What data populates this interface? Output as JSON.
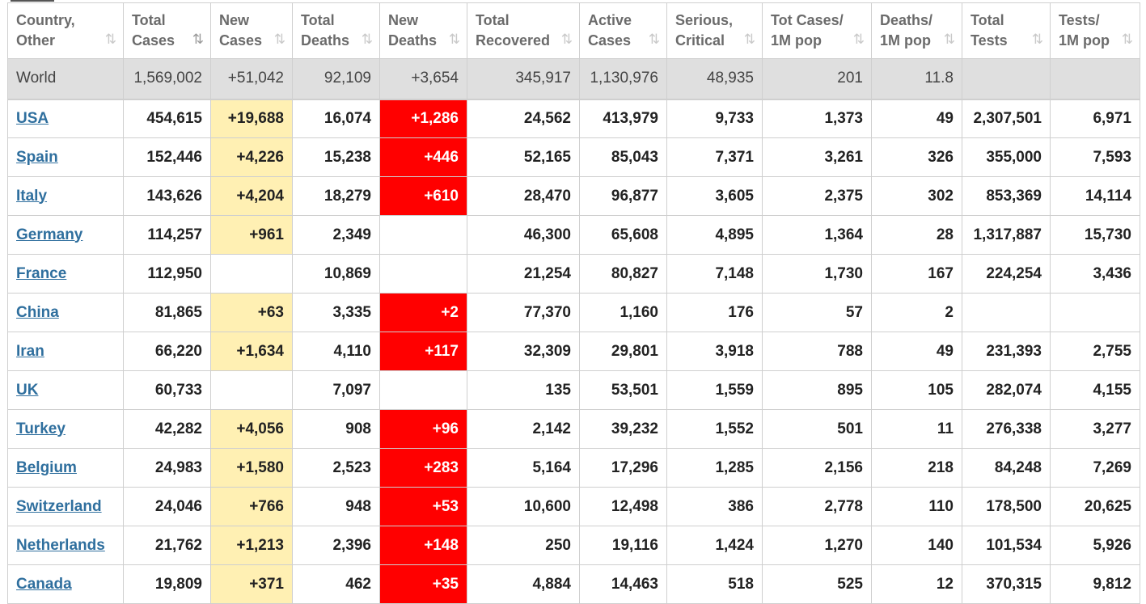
{
  "colors": {
    "new_cases_highlight": "#fff0b3",
    "new_deaths_highlight": "#ff0000",
    "link": "#2f6f9e",
    "world_row_bg": "#dfdfdf"
  },
  "icons": {
    "sort": "sort-arrows-icon",
    "sort_active": "sort-desc-icon"
  },
  "columns": [
    {
      "line1": "Country,",
      "line2": "Other",
      "sort": "⇅",
      "active": false
    },
    {
      "line1": "Total",
      "line2": "Cases",
      "sort": "⇅",
      "active": true
    },
    {
      "line1": "New",
      "line2": "Cases",
      "sort": "⇅",
      "active": false
    },
    {
      "line1": "Total",
      "line2": "Deaths",
      "sort": "⇅",
      "active": false
    },
    {
      "line1": "New",
      "line2": "Deaths",
      "sort": "⇅",
      "active": false
    },
    {
      "line1": "Total",
      "line2": "Recovered",
      "sort": "⇅",
      "active": false
    },
    {
      "line1": "Active",
      "line2": "Cases",
      "sort": "⇅",
      "active": false
    },
    {
      "line1": "Serious,",
      "line2": "Critical",
      "sort": "⇅",
      "active": false
    },
    {
      "line1": "Tot Cases/",
      "line2": "1M pop",
      "sort": "⇅",
      "active": false
    },
    {
      "line1": "Deaths/",
      "line2": "1M pop",
      "sort": "⇅",
      "active": false
    },
    {
      "line1": "Total",
      "line2": "Tests",
      "sort": "⇅",
      "active": false
    },
    {
      "line1": "Tests/",
      "line2": "1M pop",
      "sort": "⇅",
      "active": false
    }
  ],
  "world": {
    "name": "World",
    "total_cases": "1,569,002",
    "new_cases": "+51,042",
    "total_deaths": "92,109",
    "new_deaths": "+3,654",
    "total_recovered": "345,917",
    "active_cases": "1,130,976",
    "serious": "48,935",
    "cases_per_1m": "201",
    "deaths_per_1m": "11.8",
    "total_tests": "",
    "tests_per_1m": ""
  },
  "rows": [
    {
      "name": "USA",
      "total_cases": "454,615",
      "new_cases": "+19,688",
      "total_deaths": "16,074",
      "new_deaths": "+1,286",
      "total_recovered": "24,562",
      "active_cases": "413,979",
      "serious": "9,733",
      "cases_per_1m": "1,373",
      "deaths_per_1m": "49",
      "total_tests": "2,307,501",
      "tests_per_1m": "6,971"
    },
    {
      "name": "Spain",
      "total_cases": "152,446",
      "new_cases": "+4,226",
      "total_deaths": "15,238",
      "new_deaths": "+446",
      "total_recovered": "52,165",
      "active_cases": "85,043",
      "serious": "7,371",
      "cases_per_1m": "3,261",
      "deaths_per_1m": "326",
      "total_tests": "355,000",
      "tests_per_1m": "7,593"
    },
    {
      "name": "Italy",
      "total_cases": "143,626",
      "new_cases": "+4,204",
      "total_deaths": "18,279",
      "new_deaths": "+610",
      "total_recovered": "28,470",
      "active_cases": "96,877",
      "serious": "3,605",
      "cases_per_1m": "2,375",
      "deaths_per_1m": "302",
      "total_tests": "853,369",
      "tests_per_1m": "14,114"
    },
    {
      "name": "Germany",
      "total_cases": "114,257",
      "new_cases": "+961",
      "total_deaths": "2,349",
      "new_deaths": "",
      "total_recovered": "46,300",
      "active_cases": "65,608",
      "serious": "4,895",
      "cases_per_1m": "1,364",
      "deaths_per_1m": "28",
      "total_tests": "1,317,887",
      "tests_per_1m": "15,730"
    },
    {
      "name": "France",
      "total_cases": "112,950",
      "new_cases": "",
      "total_deaths": "10,869",
      "new_deaths": "",
      "total_recovered": "21,254",
      "active_cases": "80,827",
      "serious": "7,148",
      "cases_per_1m": "1,730",
      "deaths_per_1m": "167",
      "total_tests": "224,254",
      "tests_per_1m": "3,436"
    },
    {
      "name": "China",
      "total_cases": "81,865",
      "new_cases": "+63",
      "total_deaths": "3,335",
      "new_deaths": "+2",
      "total_recovered": "77,370",
      "active_cases": "1,160",
      "serious": "176",
      "cases_per_1m": "57",
      "deaths_per_1m": "2",
      "total_tests": "",
      "tests_per_1m": ""
    },
    {
      "name": "Iran",
      "total_cases": "66,220",
      "new_cases": "+1,634",
      "total_deaths": "4,110",
      "new_deaths": "+117",
      "total_recovered": "32,309",
      "active_cases": "29,801",
      "serious": "3,918",
      "cases_per_1m": "788",
      "deaths_per_1m": "49",
      "total_tests": "231,393",
      "tests_per_1m": "2,755"
    },
    {
      "name": "UK",
      "total_cases": "60,733",
      "new_cases": "",
      "total_deaths": "7,097",
      "new_deaths": "",
      "total_recovered": "135",
      "active_cases": "53,501",
      "serious": "1,559",
      "cases_per_1m": "895",
      "deaths_per_1m": "105",
      "total_tests": "282,074",
      "tests_per_1m": "4,155"
    },
    {
      "name": "Turkey",
      "total_cases": "42,282",
      "new_cases": "+4,056",
      "total_deaths": "908",
      "new_deaths": "+96",
      "total_recovered": "2,142",
      "active_cases": "39,232",
      "serious": "1,552",
      "cases_per_1m": "501",
      "deaths_per_1m": "11",
      "total_tests": "276,338",
      "tests_per_1m": "3,277"
    },
    {
      "name": "Belgium",
      "total_cases": "24,983",
      "new_cases": "+1,580",
      "total_deaths": "2,523",
      "new_deaths": "+283",
      "total_recovered": "5,164",
      "active_cases": "17,296",
      "serious": "1,285",
      "cases_per_1m": "2,156",
      "deaths_per_1m": "218",
      "total_tests": "84,248",
      "tests_per_1m": "7,269"
    },
    {
      "name": "Switzerland",
      "total_cases": "24,046",
      "new_cases": "+766",
      "total_deaths": "948",
      "new_deaths": "+53",
      "total_recovered": "10,600",
      "active_cases": "12,498",
      "serious": "386",
      "cases_per_1m": "2,778",
      "deaths_per_1m": "110",
      "total_tests": "178,500",
      "tests_per_1m": "20,625"
    },
    {
      "name": "Netherlands",
      "total_cases": "21,762",
      "new_cases": "+1,213",
      "total_deaths": "2,396",
      "new_deaths": "+148",
      "total_recovered": "250",
      "active_cases": "19,116",
      "serious": "1,424",
      "cases_per_1m": "1,270",
      "deaths_per_1m": "140",
      "total_tests": "101,534",
      "tests_per_1m": "5,926"
    },
    {
      "name": "Canada",
      "total_cases": "19,809",
      "new_cases": "+371",
      "total_deaths": "462",
      "new_deaths": "+35",
      "total_recovered": "4,884",
      "active_cases": "14,463",
      "serious": "518",
      "cases_per_1m": "525",
      "deaths_per_1m": "12",
      "total_tests": "370,315",
      "tests_per_1m": "9,812"
    }
  ]
}
